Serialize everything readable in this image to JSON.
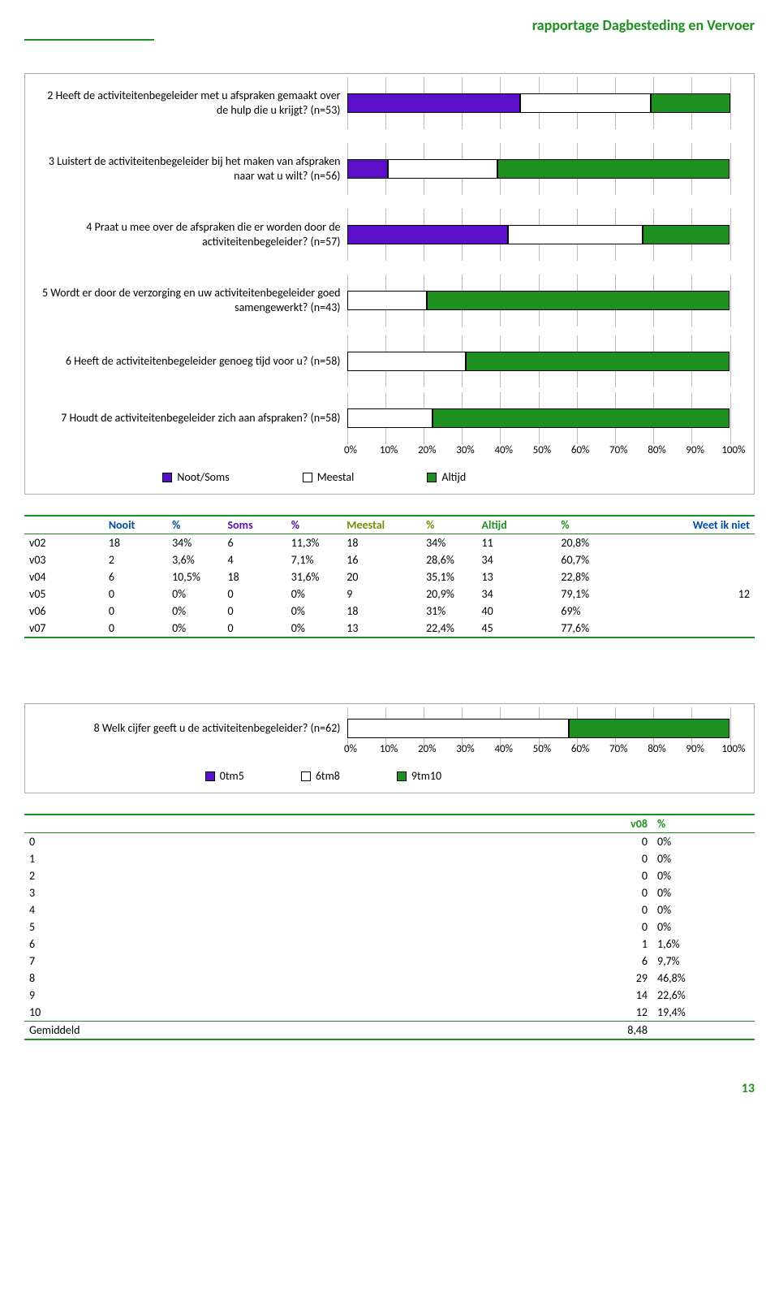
{
  "header": {
    "title": "rapportage Dagbesteding en Vervoer"
  },
  "chart1": {
    "type": "stacked-bar-horizontal",
    "colors": {
      "nootSoms": "#5b0fc9",
      "meestal": "#ffffff",
      "altijd": "#1e9020",
      "grid": "#bbbbbb",
      "border": "#000000"
    },
    "legend": [
      {
        "label": "Noot/Soms",
        "color": "#5b0fc9"
      },
      {
        "label": "Meestal",
        "color": "#ffffff"
      },
      {
        "label": "Altijd",
        "color": "#1e9020"
      }
    ],
    "axis": [
      "0%",
      "10%",
      "20%",
      "30%",
      "40%",
      "50%",
      "60%",
      "70%",
      "80%",
      "90%",
      "100%"
    ],
    "rows": [
      {
        "label": "2 Heeft de activiteitenbegeleider met u afspraken gemaakt over de hulp die u krijgt? (n=53)",
        "segments": [
          45.3,
          34.0,
          20.8
        ]
      },
      {
        "label": "3 Luistert de activiteitenbegeleider bij het maken van afspraken naar wat u wilt? (n=56)",
        "segments": [
          10.7,
          28.6,
          60.7
        ]
      },
      {
        "label": "4 Praat u mee over de afspraken die er worden door de activiteitenbegeleider? (n=57)",
        "segments": [
          42.1,
          35.1,
          22.8
        ]
      },
      {
        "label": "5 Wordt er door de verzorging en uw activiteitenbegeleider goed samengewerkt? (n=43)",
        "segments": [
          0,
          20.9,
          79.1
        ]
      },
      {
        "label": "6 Heeft de activiteitenbegeleider genoeg tijd voor u? (n=58)",
        "segments": [
          0,
          31.0,
          69.0
        ]
      },
      {
        "label": "7 Houdt de activiteitenbegeleider zich aan afspraken? (n=58)",
        "segments": [
          0,
          22.4,
          77.6
        ]
      }
    ]
  },
  "table1": {
    "headers": [
      "",
      "Nooit",
      "%",
      "Soms",
      "%",
      "Meestal",
      "%",
      "Altijd",
      "%",
      "Weet ik niet"
    ],
    "rows": [
      [
        "v02",
        "18",
        "34%",
        "6",
        "11,3%",
        "18",
        "34%",
        "11",
        "20,8%",
        ""
      ],
      [
        "v03",
        "2",
        "3,6%",
        "4",
        "7,1%",
        "16",
        "28,6%",
        "34",
        "60,7%",
        ""
      ],
      [
        "v04",
        "6",
        "10,5%",
        "18",
        "31,6%",
        "20",
        "35,1%",
        "13",
        "22,8%",
        ""
      ],
      [
        "v05",
        "0",
        "0%",
        "0",
        "0%",
        "9",
        "20,9%",
        "34",
        "79,1%",
        "12"
      ],
      [
        "v06",
        "0",
        "0%",
        "0",
        "0%",
        "18",
        "31%",
        "40",
        "69%",
        ""
      ],
      [
        "v07",
        "0",
        "0%",
        "0",
        "0%",
        "13",
        "22,4%",
        "45",
        "77,6%",
        ""
      ]
    ]
  },
  "chart2": {
    "type": "stacked-bar-horizontal",
    "colors": {
      "a": "#5b0fc9",
      "b": "#ffffff",
      "c": "#1e9020"
    },
    "legend": [
      {
        "label": "0tm5",
        "color": "#5b0fc9"
      },
      {
        "label": "6tm8",
        "color": "#ffffff"
      },
      {
        "label": "9tm10",
        "color": "#1e9020"
      }
    ],
    "axis": [
      "0%",
      "10%",
      "20%",
      "30%",
      "40%",
      "50%",
      "60%",
      "70%",
      "80%",
      "90%",
      "100%"
    ],
    "row": {
      "label": "8 Welk cijfer geeft u de activiteitenbegeleider? (n=62)",
      "segments": [
        0,
        58.0,
        42.0
      ]
    }
  },
  "table2": {
    "header": [
      "",
      "v08",
      "%"
    ],
    "rows": [
      [
        "0",
        "0",
        "0%"
      ],
      [
        "1",
        "0",
        "0%"
      ],
      [
        "2",
        "0",
        "0%"
      ],
      [
        "3",
        "0",
        "0%"
      ],
      [
        "4",
        "0",
        "0%"
      ],
      [
        "5",
        "0",
        "0%"
      ],
      [
        "6",
        "1",
        "1,6%"
      ],
      [
        "7",
        "6",
        "9,7%"
      ],
      [
        "8",
        "29",
        "46,8%"
      ],
      [
        "9",
        "14",
        "22,6%"
      ],
      [
        "10",
        "12",
        "19,4%"
      ]
    ],
    "footer": [
      "Gemiddeld",
      "8,48",
      ""
    ]
  },
  "footer": {
    "page": "13"
  }
}
